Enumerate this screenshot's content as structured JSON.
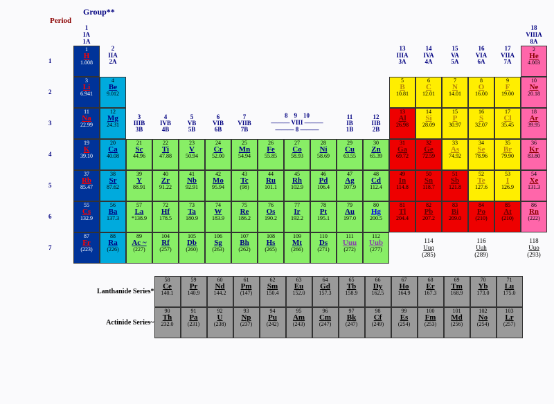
{
  "labels": {
    "group": "Group**",
    "period": "Period"
  },
  "cell_colors": {
    "dblue": "#003399",
    "lblue": "#00aadd",
    "green": "#88ee66",
    "yellow": "#ffee00",
    "red": "#ee0000",
    "pink": "#ff66aa",
    "grey": "#9a9a9a"
  },
  "group_headers": [
    {
      "col": 1,
      "n": "1",
      "a": "IA",
      "b": "1A"
    },
    {
      "col": 2,
      "n": "2",
      "a": "IIA",
      "b": "2A"
    },
    {
      "col": 3,
      "n": "3",
      "a": "IIIB",
      "b": "3B"
    },
    {
      "col": 4,
      "n": "4",
      "a": "IVB",
      "b": "4B"
    },
    {
      "col": 5,
      "n": "5",
      "a": "VB",
      "b": "5B"
    },
    {
      "col": 6,
      "n": "6",
      "a": "VIB",
      "b": "6B"
    },
    {
      "col": 7,
      "n": "7",
      "a": "VIIB",
      "b": "7B"
    },
    {
      "col": 8,
      "n": "8"
    },
    {
      "col": 9,
      "n": "9"
    },
    {
      "col": 10,
      "n": "10"
    },
    {
      "col": 11,
      "n": "11",
      "a": "IB",
      "b": "1B"
    },
    {
      "col": 12,
      "n": "12",
      "a": "IIB",
      "b": "2B"
    },
    {
      "col": 13,
      "n": "13",
      "a": "IIIA",
      "b": "3A"
    },
    {
      "col": 14,
      "n": "14",
      "a": "IVA",
      "b": "4A"
    },
    {
      "col": 15,
      "n": "15",
      "a": "VA",
      "b": "5A"
    },
    {
      "col": 16,
      "n": "16",
      "a": "VIA",
      "b": "6A"
    },
    {
      "col": 17,
      "n": "17",
      "a": "VIIA",
      "b": "7A"
    },
    {
      "col": 18,
      "n": "18",
      "a": "VIIIA",
      "b": "8A"
    }
  ],
  "viii_label": "——— VIII ———<br>——— 8 ———",
  "period_numbers": [
    "1",
    "2",
    "3",
    "4",
    "5",
    "6",
    "7"
  ],
  "main": [
    [
      {
        "n": 1,
        "s": "H",
        "m": "1.008",
        "c": "dblue"
      },
      null,
      null,
      null,
      null,
      null,
      null,
      null,
      null,
      null,
      null,
      null,
      null,
      null,
      null,
      null,
      null,
      {
        "n": 2,
        "s": "He",
        "m": "4.003",
        "c": "pink"
      }
    ],
    [
      {
        "n": 3,
        "s": "Li",
        "m": "6.941",
        "c": "dblue"
      },
      {
        "n": 4,
        "s": "Be",
        "m": "9.012",
        "c": "lblue"
      },
      null,
      null,
      null,
      null,
      null,
      null,
      null,
      null,
      null,
      null,
      {
        "n": 5,
        "s": "B",
        "m": "10.81",
        "c": "yellow"
      },
      {
        "n": 6,
        "s": "C",
        "m": "12.01",
        "c": "yellow"
      },
      {
        "n": 7,
        "s": "N",
        "m": "14.01",
        "c": "yellow"
      },
      {
        "n": 8,
        "s": "O",
        "m": "16.00",
        "c": "yellow"
      },
      {
        "n": 9,
        "s": "F",
        "m": "19.00",
        "c": "yellow"
      },
      {
        "n": 10,
        "s": "Ne",
        "m": "20.18",
        "c": "pink"
      }
    ],
    [
      {
        "n": 11,
        "s": "Na",
        "m": "22.99",
        "c": "dblue"
      },
      {
        "n": 12,
        "s": "Mg",
        "m": "24.31",
        "c": "lblue"
      },
      null,
      null,
      null,
      null,
      null,
      null,
      null,
      null,
      null,
      null,
      {
        "n": 13,
        "s": "Al",
        "m": "26.98",
        "c": "red"
      },
      {
        "n": 14,
        "s": "Si",
        "m": "28.09",
        "c": "yellow"
      },
      {
        "n": 15,
        "s": "P",
        "m": "30.97",
        "c": "yellow"
      },
      {
        "n": 16,
        "s": "S",
        "m": "32.07",
        "c": "yellow"
      },
      {
        "n": 17,
        "s": "Cl",
        "m": "35.45",
        "c": "yellow"
      },
      {
        "n": 18,
        "s": "Ar",
        "m": "39.95",
        "c": "pink"
      }
    ],
    [
      {
        "n": 19,
        "s": "K",
        "m": "39.10",
        "c": "dblue"
      },
      {
        "n": 20,
        "s": "Ca",
        "m": "40.08",
        "c": "lblue"
      },
      {
        "n": 21,
        "s": "Sc",
        "m": "44.96",
        "c": "green"
      },
      {
        "n": 22,
        "s": "Ti",
        "m": "47.88",
        "c": "green"
      },
      {
        "n": 23,
        "s": "V",
        "m": "50.94",
        "c": "green"
      },
      {
        "n": 24,
        "s": "Cr",
        "m": "52.00",
        "c": "green"
      },
      {
        "n": 25,
        "s": "Mn",
        "m": "54.94",
        "c": "green"
      },
      {
        "n": 26,
        "s": "Fe",
        "m": "55.85",
        "c": "green"
      },
      {
        "n": 27,
        "s": "Co",
        "m": "58.93",
        "c": "green"
      },
      {
        "n": 28,
        "s": "Ni",
        "m": "58.69",
        "c": "green"
      },
      {
        "n": 29,
        "s": "Cu",
        "m": "63.55",
        "c": "green"
      },
      {
        "n": 30,
        "s": "Zn",
        "m": "65.39",
        "c": "green"
      },
      {
        "n": 31,
        "s": "Ga",
        "m": "69.72",
        "c": "red"
      },
      {
        "n": 32,
        "s": "Ge",
        "m": "72.59",
        "c": "red"
      },
      {
        "n": 33,
        "s": "As",
        "m": "74.92",
        "c": "yellow"
      },
      {
        "n": 34,
        "s": "Se",
        "m": "78.96",
        "c": "yellow"
      },
      {
        "n": 35,
        "s": "Br",
        "m": "79.90",
        "c": "yellow"
      },
      {
        "n": 36,
        "s": "Kr",
        "m": "83.80",
        "c": "pink"
      }
    ],
    [
      {
        "n": 37,
        "s": "Rb",
        "m": "85.47",
        "c": "dblue"
      },
      {
        "n": 38,
        "s": "Sr",
        "m": "87.62",
        "c": "lblue"
      },
      {
        "n": 39,
        "s": "Y",
        "m": "88.91",
        "c": "green"
      },
      {
        "n": 40,
        "s": "Zr",
        "m": "91.22",
        "c": "green"
      },
      {
        "n": 41,
        "s": "Nb",
        "m": "92.91",
        "c": "green"
      },
      {
        "n": 42,
        "s": "Mo",
        "m": "95.94",
        "c": "green"
      },
      {
        "n": 43,
        "s": "Tc",
        "m": "(98)",
        "c": "green"
      },
      {
        "n": 44,
        "s": "Ru",
        "m": "101.1",
        "c": "green"
      },
      {
        "n": 45,
        "s": "Rh",
        "m": "102.9",
        "c": "green"
      },
      {
        "n": 46,
        "s": "Pd",
        "m": "106.4",
        "c": "green"
      },
      {
        "n": 47,
        "s": "Ag",
        "m": "107.9",
        "c": "green"
      },
      {
        "n": 48,
        "s": "Cd",
        "m": "112.4",
        "c": "green"
      },
      {
        "n": 49,
        "s": "In",
        "m": "114.8",
        "c": "red"
      },
      {
        "n": 50,
        "s": "Sn",
        "m": "118.7",
        "c": "red"
      },
      {
        "n": 51,
        "s": "Sb",
        "m": "121.8",
        "c": "red"
      },
      {
        "n": 52,
        "s": "Te",
        "m": "127.6",
        "c": "yellow"
      },
      {
        "n": 53,
        "s": "I",
        "m": "126.9",
        "c": "yellow"
      },
      {
        "n": 54,
        "s": "Xe",
        "m": "131.3",
        "c": "pink"
      }
    ],
    [
      {
        "n": 55,
        "s": "Cs",
        "m": "132.9",
        "c": "dblue"
      },
      {
        "n": 56,
        "s": "Ba",
        "m": "137.3",
        "c": "lblue"
      },
      {
        "n": 57,
        "s": "La",
        "m": "*138.9",
        "c": "green"
      },
      {
        "n": 72,
        "s": "Hf",
        "m": "178.5",
        "c": "green"
      },
      {
        "n": 73,
        "s": "Ta",
        "m": "180.9",
        "c": "green"
      },
      {
        "n": 74,
        "s": "W",
        "m": "183.9",
        "c": "green"
      },
      {
        "n": 75,
        "s": "Re",
        "m": "186.2",
        "c": "green"
      },
      {
        "n": 76,
        "s": "Os",
        "m": "190.2",
        "c": "green"
      },
      {
        "n": 77,
        "s": "Ir",
        "m": "192.2",
        "c": "green"
      },
      {
        "n": 78,
        "s": "Pt",
        "m": "195.1",
        "c": "green"
      },
      {
        "n": 79,
        "s": "Au",
        "m": "197.0",
        "c": "green"
      },
      {
        "n": 80,
        "s": "Hg",
        "m": "200.5",
        "c": "green",
        "sc": "blue"
      },
      {
        "n": 81,
        "s": "Tl",
        "m": "204.4",
        "c": "red"
      },
      {
        "n": 82,
        "s": "Pb",
        "m": "207.2",
        "c": "red"
      },
      {
        "n": 83,
        "s": "Bi",
        "m": "209.0",
        "c": "red"
      },
      {
        "n": 84,
        "s": "Po",
        "m": "(210)",
        "c": "red"
      },
      {
        "n": 85,
        "s": "At",
        "m": "(210)",
        "c": "red"
      },
      {
        "n": 86,
        "s": "Rn",
        "m": "(222)",
        "c": "pink"
      }
    ],
    [
      {
        "n": 87,
        "s": "Fr",
        "m": "(223)",
        "c": "dblue"
      },
      {
        "n": 88,
        "s": "Ra",
        "m": "(226)",
        "c": "lblue"
      },
      {
        "n": 89,
        "s": "Ac ~",
        "m": "(227)",
        "c": "green"
      },
      {
        "n": 104,
        "s": "Rf",
        "m": "(257)",
        "c": "green"
      },
      {
        "n": 105,
        "s": "Db",
        "m": "(260)",
        "c": "green"
      },
      {
        "n": 106,
        "s": "Sg",
        "m": "(263)",
        "c": "green"
      },
      {
        "n": 107,
        "s": "Bh",
        "m": "(262)",
        "c": "green"
      },
      {
        "n": 108,
        "s": "Hs",
        "m": "(265)",
        "c": "green"
      },
      {
        "n": 109,
        "s": "Mt",
        "m": "(266)",
        "c": "green"
      },
      {
        "n": 110,
        "s": "Ds",
        "m": "(271)",
        "c": "green"
      },
      {
        "n": 111,
        "s": "Uuu",
        "m": "(272)",
        "c": "green",
        "sc": "purple"
      },
      {
        "n": 112,
        "s": "Uub",
        "m": "(277)",
        "c": "green",
        "sc": "purple"
      },
      null,
      null,
      null,
      null,
      null,
      null
    ]
  ],
  "notes_row7": [
    {
      "col": 14,
      "n": "114",
      "s": "Uuq",
      "m": "(285)"
    },
    {
      "col": 16,
      "n": "116",
      "s": "Uuh",
      "m": "(289)"
    },
    {
      "col": 18,
      "n": "118",
      "s": "Uuo",
      "m": "(293)"
    }
  ],
  "inner_labels": {
    "lan": "Lanthanide Series*",
    "act": "Actinide Series~"
  },
  "lanthanides": [
    {
      "n": 58,
      "s": "Ce",
      "m": "140.1"
    },
    {
      "n": 59,
      "s": "Pr",
      "m": "140.9"
    },
    {
      "n": 60,
      "s": "Nd",
      "m": "144.2"
    },
    {
      "n": 61,
      "s": "Pm",
      "m": "(147)"
    },
    {
      "n": 62,
      "s": "Sm",
      "m": "150.4"
    },
    {
      "n": 63,
      "s": "Eu",
      "m": "152.0"
    },
    {
      "n": 64,
      "s": "Gd",
      "m": "157.3"
    },
    {
      "n": 65,
      "s": "Tb",
      "m": "158.9"
    },
    {
      "n": 66,
      "s": "Dy",
      "m": "162.5"
    },
    {
      "n": 67,
      "s": "Ho",
      "m": "164.9"
    },
    {
      "n": 68,
      "s": "Er",
      "m": "167.3"
    },
    {
      "n": 69,
      "s": "Tm",
      "m": "168.9"
    },
    {
      "n": 70,
      "s": "Yb",
      "m": "173.0"
    },
    {
      "n": 71,
      "s": "Lu",
      "m": "175.0"
    }
  ],
  "actinides": [
    {
      "n": 90,
      "s": "Th",
      "m": "232.0"
    },
    {
      "n": 91,
      "s": "Pa",
      "m": "(231)"
    },
    {
      "n": 92,
      "s": "U",
      "m": "(238)"
    },
    {
      "n": 93,
      "s": "Np",
      "m": "(237)"
    },
    {
      "n": 94,
      "s": "Pu",
      "m": "(242)"
    },
    {
      "n": 95,
      "s": "Am",
      "m": "(243)"
    },
    {
      "n": 96,
      "s": "Cm",
      "m": "(247)"
    },
    {
      "n": 97,
      "s": "Bk",
      "m": "(247)"
    },
    {
      "n": 98,
      "s": "Cf",
      "m": "(249)"
    },
    {
      "n": 99,
      "s": "Es",
      "m": "(254)"
    },
    {
      "n": 100,
      "s": "Fm",
      "m": "(253)"
    },
    {
      "n": 101,
      "s": "Md",
      "m": "(256)"
    },
    {
      "n": 102,
      "s": "No",
      "m": "(254)"
    },
    {
      "n": 103,
      "s": "Lr",
      "m": "(257)"
    }
  ]
}
